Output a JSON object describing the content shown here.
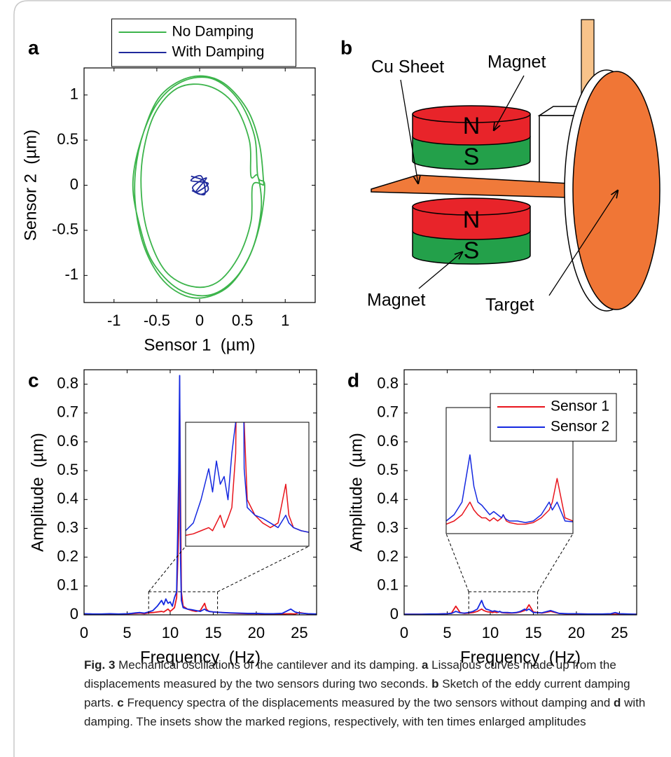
{
  "chart_data": [
    {
      "type": "line",
      "panel_label": "a",
      "x_label": "Sensor 1  (µm)",
      "y_label": "Sensor 2  (µm)",
      "xlim": [
        -1.35,
        1.35
      ],
      "ylim": [
        -1.3,
        1.3
      ],
      "xticks": [
        -1,
        -0.5,
        0,
        0.5,
        1
      ],
      "yticks": [
        -1,
        -0.5,
        0,
        0.5,
        1
      ],
      "legend": "top",
      "series": [
        {
          "name": "No Damping",
          "color": "#3cb44b",
          "x": [
            0.75,
            0.7,
            0.55,
            0.25,
            -0.1,
            -0.45,
            -0.65,
            -0.75,
            -0.74,
            -0.62,
            -0.38,
            -0.05,
            0.3,
            0.55,
            0.7,
            0.76,
            0.68,
            0.64,
            0.45,
            0.15,
            -0.2,
            -0.5,
            -0.7,
            -0.78,
            -0.7,
            -0.55,
            -0.25,
            0.1,
            0.4,
            0.62,
            0.72,
            0.68,
            0.6,
            0.58,
            0.4,
            0.1,
            -0.25,
            -0.52,
            -0.66,
            -0.68,
            -0.6,
            -0.4,
            -0.1,
            0.2,
            0.45,
            0.6,
            0.62,
            0.75
          ],
          "values": [
            0.0,
            0.45,
            0.85,
            1.15,
            1.2,
            1.0,
            0.6,
            0.15,
            -0.3,
            -0.75,
            -1.1,
            -1.25,
            -1.15,
            -0.85,
            -0.45,
            0.0,
            0.1,
            0.55,
            0.95,
            1.18,
            1.15,
            0.9,
            0.45,
            0.0,
            -0.45,
            -0.85,
            -1.15,
            -1.22,
            -1.05,
            -0.7,
            -0.25,
            0.1,
            0.1,
            0.5,
            0.9,
            1.1,
            1.08,
            0.8,
            0.35,
            -0.1,
            -0.55,
            -0.95,
            -1.12,
            -1.08,
            -0.8,
            -0.4,
            0.0,
            0.0
          ]
        },
        {
          "name": "With Damping",
          "color": "#1f2a9c",
          "x": [
            -0.1,
            0.05,
            0.1,
            0.0,
            -0.08,
            0.08,
            -0.05,
            0.1,
            -0.1,
            0.02,
            0.06,
            -0.09
          ],
          "values": [
            0.1,
            0.05,
            -0.05,
            -0.1,
            -0.02,
            0.08,
            -0.08,
            0.02,
            0.05,
            0.1,
            -0.1,
            -0.06
          ]
        }
      ]
    },
    {
      "type": "line",
      "panel_label": "c",
      "x_label": "Frequency  (Hz)",
      "y_label": "Amplitude  (µm)",
      "xlim": [
        0,
        27
      ],
      "ylim": [
        0,
        0.85
      ],
      "xticks": [
        0,
        5,
        10,
        15,
        20,
        25
      ],
      "yticks": [
        0,
        0.1,
        0.2,
        0.3,
        0.4,
        0.5,
        0.6,
        0.7,
        0.8
      ],
      "inset": {
        "xlim": [
          7.5,
          15.5
        ],
        "ylim": [
          0,
          0.08
        ]
      },
      "x": [
        0,
        1,
        2,
        3,
        4,
        5,
        5.5,
        6,
        6.5,
        7,
        7.5,
        8,
        8.5,
        9,
        9.25,
        9.5,
        9.75,
        10,
        10.25,
        10.5,
        10.75,
        11,
        11.1,
        11.2,
        11.3,
        11.5,
        12,
        12.5,
        13,
        13.5,
        14,
        14.2,
        14.5,
        15,
        16,
        17,
        18,
        19,
        20,
        21,
        22,
        23,
        24,
        24.5,
        25,
        26,
        27
      ],
      "series": [
        {
          "color": "#e8141c",
          "values": [
            0.003,
            0.002,
            0.002,
            0.003,
            0.002,
            0.003,
            0.004,
            0.005,
            0.006,
            0.004,
            0.007,
            0.008,
            0.01,
            0.012,
            0.01,
            0.015,
            0.02,
            0.012,
            0.018,
            0.025,
            0.06,
            0.3,
            0.75,
            0.4,
            0.08,
            0.03,
            0.02,
            0.015,
            0.012,
            0.015,
            0.04,
            0.02,
            0.012,
            0.01,
            0.008,
            0.006,
            0.005,
            0.004,
            0.004,
            0.003,
            0.003,
            0.003,
            0.004,
            0.003,
            0.008,
            0.003,
            0.002
          ]
        },
        {
          "color": "#1428e0",
          "values": [
            0.004,
            0.003,
            0.003,
            0.004,
            0.003,
            0.004,
            0.005,
            0.007,
            0.008,
            0.006,
            0.01,
            0.015,
            0.03,
            0.05,
            0.035,
            0.055,
            0.04,
            0.045,
            0.03,
            0.06,
            0.08,
            0.5,
            0.83,
            0.2,
            0.05,
            0.025,
            0.02,
            0.018,
            0.015,
            0.012,
            0.02,
            0.015,
            0.012,
            0.01,
            0.008,
            0.007,
            0.006,
            0.005,
            0.005,
            0.004,
            0.004,
            0.005,
            0.02,
            0.01,
            0.006,
            0.004,
            0.003
          ]
        }
      ]
    },
    {
      "type": "line",
      "panel_label": "d",
      "x_label": "Frequency  (Hz)",
      "y_label": "Amplitude  (µm)",
      "xlim": [
        0,
        27
      ],
      "ylim": [
        0,
        0.85
      ],
      "xticks": [
        0,
        5,
        10,
        15,
        20,
        25
      ],
      "yticks": [
        0,
        0.1,
        0.2,
        0.3,
        0.4,
        0.5,
        0.6,
        0.7,
        0.8
      ],
      "legend": "upper right",
      "inset": {
        "xlim": [
          7.5,
          15.5
        ],
        "ylim": [
          0,
          0.08
        ]
      },
      "x": [
        0,
        1,
        2,
        3,
        4,
        5,
        5.5,
        6,
        6.5,
        7,
        7.5,
        8,
        8.5,
        9,
        9.25,
        9.5,
        9.75,
        10,
        10.25,
        10.5,
        10.75,
        11,
        11.1,
        11.2,
        11.3,
        11.5,
        12,
        12.5,
        13,
        13.5,
        14,
        14.2,
        14.5,
        15,
        16,
        17,
        18,
        19,
        20,
        21,
        22,
        23,
        24,
        24.5,
        25,
        26,
        27
      ],
      "series": [
        {
          "name": "Sensor 1",
          "color": "#e8141c",
          "values": [
            0.002,
            0.002,
            0.002,
            0.002,
            0.003,
            0.004,
            0.006,
            0.03,
            0.008,
            0.005,
            0.006,
            0.008,
            0.012,
            0.02,
            0.015,
            0.012,
            0.01,
            0.01,
            0.008,
            0.01,
            0.008,
            0.01,
            0.012,
            0.01,
            0.008,
            0.007,
            0.006,
            0.006,
            0.007,
            0.01,
            0.015,
            0.02,
            0.035,
            0.01,
            0.006,
            0.012,
            0.005,
            0.003,
            0.003,
            0.003,
            0.002,
            0.002,
            0.002,
            0.002,
            0.003,
            0.002,
            0.002
          ]
        },
        {
          "name": "Sensor 2",
          "color": "#1428e0",
          "values": [
            0.002,
            0.002,
            0.002,
            0.003,
            0.003,
            0.004,
            0.005,
            0.012,
            0.007,
            0.006,
            0.008,
            0.012,
            0.02,
            0.05,
            0.03,
            0.02,
            0.018,
            0.015,
            0.012,
            0.014,
            0.012,
            0.01,
            0.012,
            0.01,
            0.009,
            0.008,
            0.008,
            0.007,
            0.008,
            0.012,
            0.02,
            0.015,
            0.02,
            0.008,
            0.007,
            0.015,
            0.005,
            0.004,
            0.004,
            0.003,
            0.003,
            0.003,
            0.004,
            0.008,
            0.004,
            0.003,
            0.002
          ]
        }
      ]
    }
  ],
  "diagram": {
    "panel_label": "b",
    "labels": [
      "Cu Sheet",
      "Magnet",
      "Magnet",
      "Target"
    ],
    "poles": [
      "N",
      "S",
      "N",
      "S"
    ]
  },
  "caption": {
    "label": "Fig. 3",
    "runs": [
      {
        "text": "Mechanical oscillations of the cantilever and its damping."
      },
      {
        "text": "a",
        "bold": true
      },
      {
        "text": "Lissajous curves made up from the displacements measured by the two sensors during two seconds."
      },
      {
        "text": "b",
        "bold": true
      },
      {
        "text": "Sketch of the eddy current damping parts."
      },
      {
        "text": "c",
        "bold": true
      },
      {
        "text": "Frequency spectra of the displacements measured by the two sensors without damping and"
      },
      {
        "text": "d",
        "bold": true
      },
      {
        "text": "with damping. The insets show the marked regions, respectively, with ten times enlarged amplitudes"
      }
    ]
  }
}
